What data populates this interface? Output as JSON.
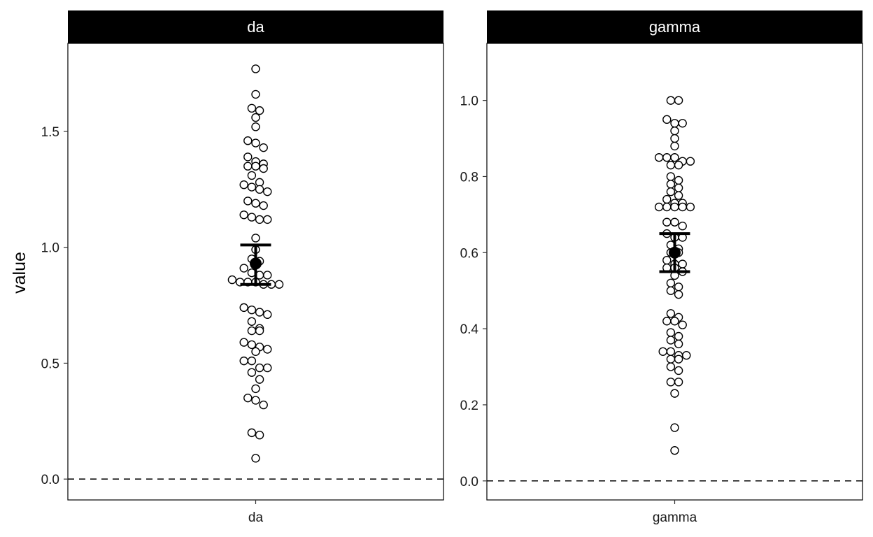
{
  "chart_data": {
    "type": "scatter",
    "ylabel": "value",
    "xlabel": "",
    "zero_line": {
      "y": 0,
      "style": "dashed"
    },
    "panels": [
      {
        "strip": "da",
        "category": "da",
        "ylim": [
          -0.09,
          1.88
        ],
        "yticks": [
          0.0,
          0.5,
          1.0,
          1.5
        ],
        "ytick_labels": [
          "0.0",
          "0.5",
          "1.0",
          "1.5"
        ],
        "summary": {
          "mean": 0.93,
          "lower": 0.84,
          "upper": 1.01
        },
        "values": [
          1.77,
          1.66,
          1.6,
          1.59,
          1.56,
          1.52,
          1.46,
          1.45,
          1.43,
          1.39,
          1.37,
          1.36,
          1.35,
          1.35,
          1.34,
          1.31,
          1.28,
          1.27,
          1.26,
          1.25,
          1.24,
          1.2,
          1.19,
          1.18,
          1.14,
          1.13,
          1.12,
          1.12,
          1.04,
          0.99,
          0.95,
          0.94,
          0.91,
          0.89,
          0.88,
          0.88,
          0.86,
          0.85,
          0.85,
          0.85,
          0.84,
          0.84,
          0.84,
          0.74,
          0.73,
          0.72,
          0.71,
          0.68,
          0.65,
          0.64,
          0.64,
          0.59,
          0.58,
          0.57,
          0.56,
          0.55,
          0.51,
          0.51,
          0.48,
          0.48,
          0.46,
          0.43,
          0.39,
          0.35,
          0.34,
          0.32,
          0.2,
          0.19,
          0.09
        ]
      },
      {
        "strip": "gamma",
        "category": "gamma",
        "ylim": [
          -0.05,
          1.15
        ],
        "yticks": [
          0.0,
          0.2,
          0.4,
          0.6,
          0.8,
          1.0
        ],
        "ytick_labels": [
          "0.0",
          "0.2",
          "0.4",
          "0.6",
          "0.8",
          "1.0"
        ],
        "summary": {
          "mean": 0.6,
          "lower": 0.55,
          "upper": 0.65
        },
        "values": [
          1.0,
          1.0,
          0.95,
          0.94,
          0.94,
          0.92,
          0.9,
          0.88,
          0.85,
          0.85,
          0.85,
          0.84,
          0.84,
          0.83,
          0.83,
          0.8,
          0.79,
          0.78,
          0.77,
          0.76,
          0.75,
          0.74,
          0.73,
          0.73,
          0.72,
          0.72,
          0.72,
          0.72,
          0.72,
          0.68,
          0.68,
          0.67,
          0.65,
          0.64,
          0.64,
          0.62,
          0.61,
          0.6,
          0.6,
          0.58,
          0.57,
          0.57,
          0.56,
          0.56,
          0.55,
          0.54,
          0.52,
          0.51,
          0.5,
          0.49,
          0.44,
          0.43,
          0.42,
          0.42,
          0.41,
          0.39,
          0.38,
          0.37,
          0.36,
          0.34,
          0.34,
          0.33,
          0.33,
          0.32,
          0.32,
          0.3,
          0.29,
          0.26,
          0.26,
          0.23,
          0.14,
          0.08
        ]
      }
    ]
  }
}
